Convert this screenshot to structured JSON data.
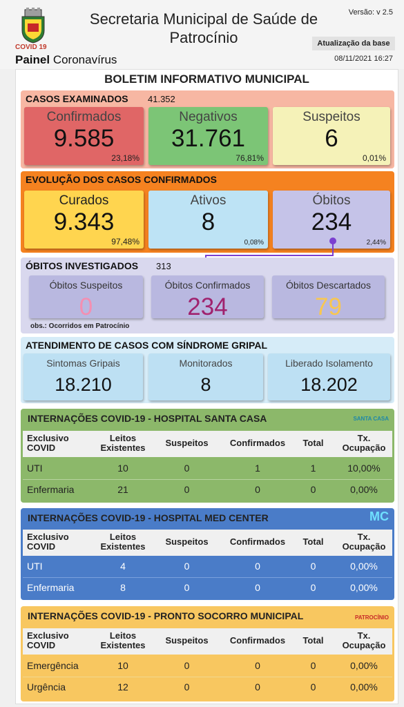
{
  "header": {
    "title": "Secretaria Municipal de Saúde de Patrocínio",
    "version": "Versão: v 2.5",
    "covid_tag": "COVID 19",
    "painel_bold": "Painel",
    "painel_rest": " Coronavírus",
    "update_label": "Atualização da base",
    "update_date": "08/11/2021 16:27"
  },
  "boletim": "BOLETIM INFORMATIVO MUNICIPAL",
  "casos": {
    "title": "CASOS EXAMINADOS",
    "total": "41.352",
    "confirmados": {
      "label": "Confirmados",
      "value": "9.585",
      "pct": "23,18%"
    },
    "negativos": {
      "label": "Negativos",
      "value": "31.761",
      "pct": "76,81%"
    },
    "suspeitos": {
      "label": "Suspeitos",
      "value": "6",
      "pct": "0,01%"
    }
  },
  "evolucao": {
    "title": "EVOLUÇÃO DOS CASOS CONFIRMADOS",
    "curados": {
      "label": "Curados",
      "value": "9.343",
      "pct": "97,48%"
    },
    "ativos": {
      "label": "Ativos",
      "value": "8",
      "pct": "0,08%"
    },
    "obitos": {
      "label": "Óbitos",
      "value": "234",
      "pct": "2,44%"
    }
  },
  "investigados": {
    "title": "ÓBITOS INVESTIGADOS",
    "total": "313",
    "suspeitos": {
      "label": "Óbitos Suspeitos",
      "value": "0"
    },
    "confirmados": {
      "label": "Óbitos Confirmados",
      "value": "234"
    },
    "descartados": {
      "label": "Óbitos Descartados",
      "value": "79"
    },
    "obs": "obs.: Ocorridos em Patrocínio"
  },
  "gripal": {
    "title": "ATENDIMENTO DE CASOS COM SÍNDROME GRIPAL",
    "sintomas": {
      "label": "Sintomas Gripais",
      "value": "18.210"
    },
    "monitorados": {
      "label": "Monitorados",
      "value": "8"
    },
    "liberado": {
      "label": "Liberado Isolamento",
      "value": "18.202"
    }
  },
  "table_headers": {
    "exclusivo": [
      "Exclusivo",
      "COVID"
    ],
    "leitos": [
      "Leitos",
      "Existentes"
    ],
    "suspeitos": "Suspeitos",
    "confirmados": "Confirmados",
    "total": "Total",
    "tx": [
      "Tx.",
      "Ocupação"
    ]
  },
  "santa_casa": {
    "title": "INTERNAÇÕES COVID-19 - HOSPITAL SANTA CASA",
    "logo": "SANTA CASA",
    "rows": [
      {
        "name": "UTI",
        "leitos": "10",
        "suspeitos": "0",
        "confirmados": "1",
        "total": "1",
        "tx": "10,00%"
      },
      {
        "name": "Enfermaria",
        "leitos": "21",
        "suspeitos": "0",
        "confirmados": "0",
        "total": "0",
        "tx": "0,00%"
      }
    ]
  },
  "med_center": {
    "title": "INTERNAÇÕES COVID-19 - HOSPITAL MED CENTER",
    "logo": "MC",
    "rows": [
      {
        "name": "UTI",
        "leitos": "4",
        "suspeitos": "0",
        "confirmados": "0",
        "total": "0",
        "tx": "0,00%"
      },
      {
        "name": "Enfermaria",
        "leitos": "8",
        "suspeitos": "0",
        "confirmados": "0",
        "total": "0",
        "tx": "0,00%"
      }
    ]
  },
  "pronto_socorro": {
    "title": "INTERNAÇÕES COVID-19 - PRONTO SOCORRO MUNICIPAL",
    "logo": "PATROCÍNIO",
    "rows": [
      {
        "name": "Emergência",
        "leitos": "10",
        "suspeitos": "0",
        "confirmados": "0",
        "total": "0",
        "tx": "0,00%"
      },
      {
        "name": "Urgência",
        "leitos": "12",
        "suspeitos": "0",
        "confirmados": "0",
        "total": "0",
        "tx": "0,00%"
      }
    ]
  },
  "colors": {
    "casos_bg": "#f7b7a3",
    "confirmados": "#e06666",
    "negativos": "#7cc576",
    "suspeitos": "#f5f2b8",
    "evolucao_bg": "#f58220",
    "curados": "#ffd54f",
    "ativos": "#bde3f5",
    "obitos": "#c5c3e8",
    "investigados_bg": "#d9d8ee",
    "inv_card": "#b9b8e0",
    "gripal_bg": "#d6ecf8",
    "gripal_card": "#bde0f3",
    "santa_casa": "#8cb86a",
    "med_center": "#4a7cc8",
    "pronto_socorro": "#f8c760"
  }
}
